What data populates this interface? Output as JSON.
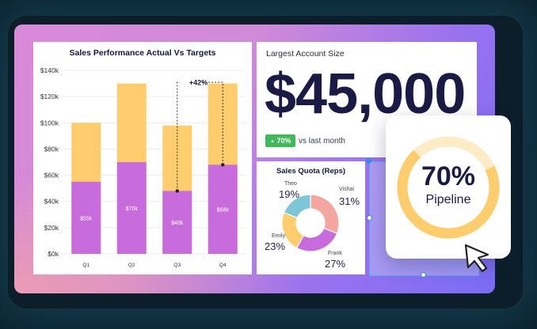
{
  "sales_chart": {
    "title": "Sales Performance Actual Vs Targets",
    "annotation": "+42%"
  },
  "largest_account": {
    "label": "Largest Account Size",
    "value": "$45,000",
    "change_badge": "70%",
    "change_text": "vs last month"
  },
  "quota": {
    "title": "Sales Quota (Reps)"
  },
  "pipeline": {
    "percent": "70%",
    "label": "Pipeline",
    "fill_fraction": 0.7
  },
  "colors": {
    "actual": "#c86bdc",
    "target": "#ffcd6e",
    "badge": "#3fb95a",
    "pipeline_fill": "#ffcd6e",
    "pipeline_track": "#fdecc6"
  },
  "chart_data": [
    {
      "type": "bar",
      "title": "Sales Performance Actual Vs Targets",
      "categories": [
        "Q1",
        "Q2",
        "Q3",
        "Q4"
      ],
      "series": [
        {
          "name": "Actual",
          "values": [
            55,
            70,
            48,
            68
          ],
          "labels": [
            "$55k",
            "$70k",
            "$48k",
            "$68k"
          ]
        },
        {
          "name": "Target",
          "values": [
            100,
            130,
            98,
            130
          ]
        }
      ],
      "stacked": "overlay",
      "ylim": [
        0,
        140
      ],
      "yticks": [
        "$0k",
        "$20k",
        "$40k",
        "$60k",
        "$80k",
        "$100k",
        "$120k",
        "$140k"
      ],
      "ytick_values": [
        0,
        20,
        40,
        60,
        80,
        100,
        120,
        140
      ],
      "annotations": [
        "+42%"
      ],
      "grid": true
    },
    {
      "type": "pie",
      "title": "Sales Quota (Reps)",
      "slices": [
        {
          "name": "Vishal",
          "value": 31,
          "label": "31%",
          "color": "#f4a6a1"
        },
        {
          "name": "Frank",
          "value": 27,
          "label": "27%",
          "color": "#c86bdc"
        },
        {
          "name": "Emily",
          "value": 23,
          "label": "23%",
          "color": "#ffcd6e"
        },
        {
          "name": "Theo",
          "value": 19,
          "label": "19%",
          "color": "#7cc6d6"
        }
      ]
    }
  ]
}
